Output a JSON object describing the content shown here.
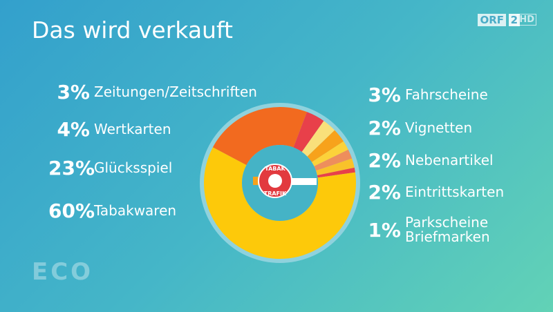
{
  "chart_data": {
    "type": "pie",
    "title": "Das wird verkauft",
    "categories": [
      "Glücksspiel",
      "Wertkarten",
      "Zeitungen/Zeitschriften",
      "Fahrscheine",
      "Vignetten",
      "Nebenartikel",
      "Eintrittskarten",
      "Parkscheine Briefmarken",
      "Tabakwaren"
    ],
    "values": [
      23,
      4,
      3,
      3,
      2,
      2,
      2,
      1,
      60
    ],
    "value_labels": [
      "23%",
      "4%",
      "3%",
      "3%",
      "2%",
      "2%",
      "2%",
      "1%",
      "60%"
    ],
    "colors": [
      "#f26a1f",
      "#e8404a",
      "#f9e07a",
      "#f7a21b",
      "#fcd23a",
      "#ee8e5c",
      "#f9c22a",
      "#e8404a",
      "#fdc90a"
    ]
  },
  "branding": {
    "channel": "ORF",
    "channel_number": "2",
    "hd": "HD",
    "show": "ECO",
    "badge_top": "TABAK",
    "badge_bottom": "TRAFIK"
  }
}
